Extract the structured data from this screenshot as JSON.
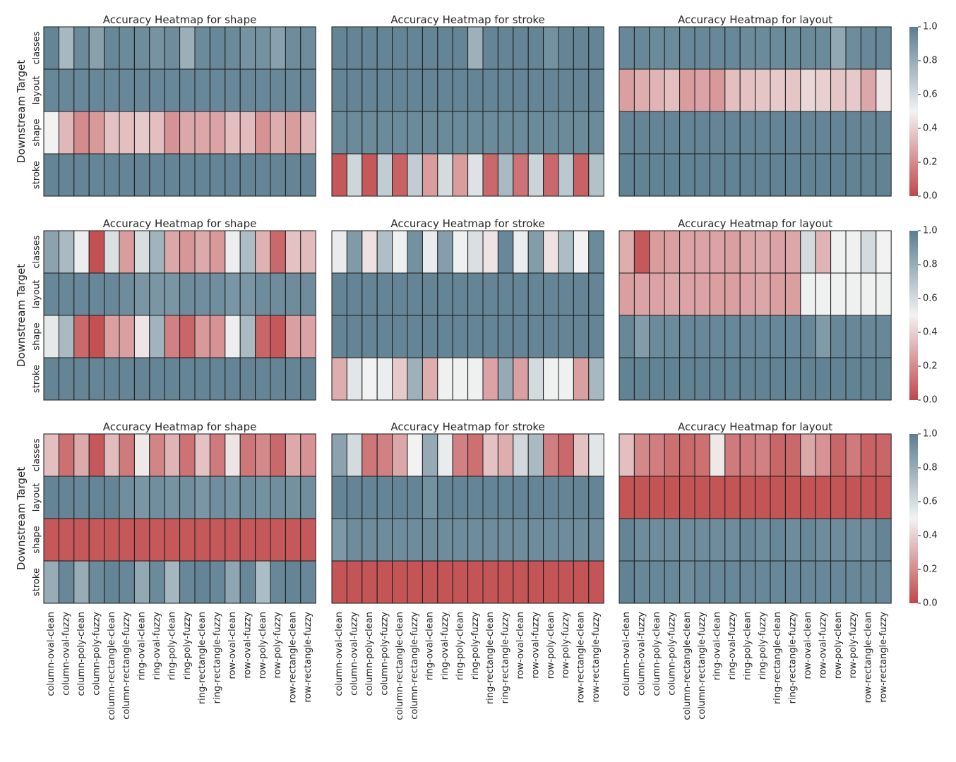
{
  "chart_data": {
    "type": "heatmap",
    "ylabel": "Downstream Target",
    "rows": [
      "classes",
      "layout",
      "shape",
      "stroke"
    ],
    "columns": [
      "column-oval-clean",
      "column-oval-fuzzy",
      "column-poly-clean",
      "column-poly-fuzzy",
      "column-rectangle-clean",
      "column-rectangle-fuzzy",
      "ring-oval-clean",
      "ring-oval-fuzzy",
      "ring-poly-clean",
      "ring-poly-fuzzy",
      "ring-rectangle-clean",
      "ring-rectangle-fuzzy",
      "row-oval-clean",
      "row-oval-fuzzy",
      "row-poly-clean",
      "row-poly-fuzzy",
      "row-rectangle-clean",
      "row-rectangle-fuzzy"
    ],
    "colorbar": {
      "range": [
        0.0,
        1.0
      ],
      "ticks": [
        "0.0",
        "0.2",
        "0.4",
        "0.6",
        "0.8",
        "1.0"
      ],
      "low_color": "#c0474a",
      "mid_color": "#f2f2f2",
      "high_color": "#5c7e90"
    },
    "grid": [
      [
        {
          "title": "Accuracy Heatmap for shape",
          "values": [
            [
              0.97,
              0.75,
              0.95,
              0.85,
              0.96,
              0.95,
              0.94,
              0.91,
              0.94,
              0.79,
              0.95,
              0.96,
              0.95,
              0.91,
              0.92,
              0.85,
              0.94,
              0.94
            ],
            [
              0.96,
              0.96,
              0.96,
              0.96,
              0.96,
              0.96,
              0.96,
              0.96,
              0.96,
              0.96,
              0.96,
              0.96,
              0.96,
              0.96,
              0.96,
              0.96,
              0.96,
              0.96
            ],
            [
              0.5,
              0.33,
              0.2,
              0.24,
              0.36,
              0.35,
              0.38,
              0.35,
              0.22,
              0.28,
              0.28,
              0.27,
              0.35,
              0.34,
              0.22,
              0.3,
              0.25,
              0.33
            ],
            [
              0.97,
              0.97,
              0.97,
              0.97,
              0.97,
              0.97,
              0.97,
              0.97,
              0.97,
              0.97,
              0.97,
              0.97,
              0.97,
              0.97,
              0.97,
              0.97,
              0.97,
              0.97
            ]
          ]
        },
        {
          "title": "Accuracy Heatmap for stroke",
          "values": [
            [
              0.97,
              0.97,
              0.97,
              0.97,
              0.97,
              0.97,
              0.97,
              0.97,
              0.97,
              0.78,
              0.97,
              0.97,
              0.97,
              0.97,
              0.92,
              0.97,
              0.97,
              0.97
            ],
            [
              0.97,
              0.97,
              0.97,
              0.97,
              0.97,
              0.97,
              0.97,
              0.97,
              0.97,
              0.97,
              0.97,
              0.97,
              0.97,
              0.97,
              0.97,
              0.97,
              0.97,
              0.97
            ],
            [
              0.95,
              0.95,
              0.95,
              0.95,
              0.95,
              0.95,
              0.95,
              0.95,
              0.95,
              0.95,
              0.95,
              0.95,
              0.95,
              0.95,
              0.95,
              0.95,
              0.95,
              0.95
            ],
            [
              0.05,
              0.62,
              0.05,
              0.66,
              0.08,
              0.66,
              0.25,
              0.6,
              0.25,
              0.57,
              0.1,
              0.74,
              0.13,
              0.63,
              0.1,
              0.68,
              0.08,
              0.71
            ]
          ]
        },
        {
          "title": "Accuracy Heatmap for layout",
          "values": [
            [
              0.96,
              0.96,
              0.95,
              0.95,
              0.96,
              0.96,
              0.96,
              0.96,
              0.95,
              0.95,
              0.95,
              0.95,
              0.95,
              0.95,
              0.82,
              0.94,
              0.96,
              0.96
            ],
            [
              0.26,
              0.3,
              0.32,
              0.35,
              0.25,
              0.27,
              0.24,
              0.35,
              0.36,
              0.37,
              0.38,
              0.37,
              0.42,
              0.4,
              0.37,
              0.38,
              0.28,
              0.46
            ],
            [
              0.97,
              0.97,
              0.97,
              0.97,
              0.97,
              0.97,
              0.97,
              0.97,
              0.97,
              0.97,
              0.97,
              0.97,
              0.97,
              0.97,
              0.97,
              0.97,
              0.97,
              0.97
            ],
            [
              0.98,
              0.98,
              0.98,
              0.98,
              0.98,
              0.98,
              0.98,
              0.98,
              0.98,
              0.98,
              0.98,
              0.98,
              0.98,
              0.98,
              0.98,
              0.98,
              0.98,
              0.98
            ]
          ]
        }
      ],
      [
        {
          "title": "Accuracy Heatmap for shape",
          "values": [
            [
              0.84,
              0.74,
              0.52,
              0.03,
              0.58,
              0.25,
              0.59,
              0.77,
              0.28,
              0.23,
              0.29,
              0.24,
              0.52,
              0.73,
              0.31,
              0.1,
              0.36,
              0.34
            ],
            [
              0.96,
              0.96,
              0.96,
              0.96,
              0.96,
              0.94,
              0.9,
              0.9,
              0.9,
              0.94,
              0.93,
              0.93,
              0.9,
              0.9,
              0.94,
              0.94,
              0.94,
              0.94
            ],
            [
              0.54,
              0.74,
              0.1,
              0.03,
              0.26,
              0.26,
              0.46,
              0.77,
              0.17,
              0.09,
              0.24,
              0.22,
              0.52,
              0.74,
              0.09,
              0.05,
              0.26,
              0.27
            ],
            [
              0.97,
              0.97,
              0.97,
              0.97,
              0.97,
              0.97,
              0.97,
              0.97,
              0.97,
              0.97,
              0.97,
              0.97,
              0.97,
              0.97,
              0.97,
              0.97,
              0.97,
              0.97
            ]
          ]
        },
        {
          "title": "Accuracy Heatmap for stroke",
          "values": [
            [
              0.53,
              0.88,
              0.45,
              0.72,
              0.51,
              0.92,
              0.53,
              0.86,
              0.51,
              0.58,
              0.46,
              0.96,
              0.52,
              0.87,
              0.45,
              0.73,
              0.5,
              0.95
            ],
            [
              0.97,
              0.97,
              0.97,
              0.97,
              0.97,
              0.97,
              0.97,
              0.97,
              0.97,
              0.97,
              0.97,
              0.97,
              0.97,
              0.97,
              0.97,
              0.97,
              0.97,
              0.97
            ],
            [
              0.97,
              0.97,
              0.97,
              0.97,
              0.97,
              0.97,
              0.97,
              0.97,
              0.97,
              0.97,
              0.97,
              0.97,
              0.97,
              0.97,
              0.97,
              0.97,
              0.97,
              0.97
            ],
            [
              0.3,
              0.55,
              0.5,
              0.52,
              0.38,
              0.78,
              0.3,
              0.51,
              0.51,
              0.51,
              0.27,
              0.81,
              0.26,
              0.6,
              0.51,
              0.51,
              0.26,
              0.75
            ]
          ]
        },
        {
          "title": "Accuracy Heatmap for layout",
          "values": [
            [
              0.3,
              0.05,
              0.25,
              0.26,
              0.27,
              0.27,
              0.27,
              0.26,
              0.28,
              0.29,
              0.27,
              0.28,
              0.6,
              0.32,
              0.51,
              0.51,
              0.6,
              0.5
            ],
            [
              0.26,
              0.27,
              0.27,
              0.28,
              0.27,
              0.27,
              0.26,
              0.26,
              0.27,
              0.28,
              0.26,
              0.26,
              0.51,
              0.51,
              0.51,
              0.51,
              0.51,
              0.51
            ],
            [
              0.96,
              0.87,
              0.95,
              0.95,
              0.96,
              0.96,
              0.96,
              0.96,
              0.96,
              0.96,
              0.96,
              0.96,
              0.96,
              0.88,
              0.96,
              0.96,
              0.96,
              0.96
            ],
            [
              0.98,
              0.98,
              0.98,
              0.98,
              0.98,
              0.98,
              0.98,
              0.98,
              0.98,
              0.98,
              0.98,
              0.98,
              0.98,
              0.98,
              0.98,
              0.98,
              0.98,
              0.98
            ]
          ]
        }
      ],
      [
        {
          "title": "Accuracy Heatmap for shape",
          "values": [
            [
              0.35,
              0.12,
              0.29,
              0.05,
              0.34,
              0.15,
              0.47,
              0.18,
              0.32,
              0.13,
              0.36,
              0.15,
              0.46,
              0.14,
              0.19,
              0.1,
              0.29,
              0.22
            ],
            [
              0.97,
              0.97,
              0.96,
              0.97,
              0.97,
              0.93,
              0.9,
              0.93,
              0.91,
              0.93,
              0.9,
              0.93,
              0.91,
              0.93,
              0.92,
              0.93,
              0.92,
              0.93
            ],
            [
              0.05,
              0.05,
              0.05,
              0.05,
              0.05,
              0.05,
              0.05,
              0.05,
              0.05,
              0.05,
              0.05,
              0.05,
              0.05,
              0.05,
              0.05,
              0.05,
              0.05,
              0.05
            ],
            [
              0.8,
              0.96,
              0.8,
              0.95,
              0.97,
              0.96,
              0.82,
              0.95,
              0.76,
              0.96,
              0.97,
              0.96,
              0.83,
              0.96,
              0.73,
              0.96,
              0.97,
              0.96
            ]
          ]
        },
        {
          "title": "Accuracy Heatmap for stroke",
          "values": [
            [
              0.84,
              0.6,
              0.14,
              0.17,
              0.28,
              0.5,
              0.81,
              0.53,
              0.17,
              0.12,
              0.36,
              0.3,
              0.61,
              0.74,
              0.16,
              0.1,
              0.36,
              0.55
            ],
            [
              0.97,
              0.97,
              0.97,
              0.97,
              0.97,
              0.97,
              0.92,
              0.97,
              0.97,
              0.97,
              0.97,
              0.97,
              0.97,
              0.97,
              0.97,
              0.97,
              0.97,
              0.97
            ],
            [
              0.89,
              0.94,
              0.94,
              0.94,
              0.94,
              0.94,
              0.94,
              0.94,
              0.94,
              0.94,
              0.94,
              0.94,
              0.94,
              0.94,
              0.94,
              0.94,
              0.94,
              0.94
            ],
            [
              0.04,
              0.04,
              0.04,
              0.04,
              0.04,
              0.04,
              0.04,
              0.04,
              0.04,
              0.04,
              0.04,
              0.04,
              0.04,
              0.04,
              0.04,
              0.04,
              0.04,
              0.04
            ]
          ]
        },
        {
          "title": "Accuracy Heatmap for layout",
          "values": [
            [
              0.35,
              0.19,
              0.16,
              0.12,
              0.1,
              0.12,
              0.47,
              0.15,
              0.15,
              0.17,
              0.09,
              0.1,
              0.28,
              0.22,
              0.09,
              0.15,
              0.08,
              0.09
            ],
            [
              0.04,
              0.04,
              0.04,
              0.04,
              0.04,
              0.04,
              0.04,
              0.04,
              0.04,
              0.04,
              0.04,
              0.04,
              0.04,
              0.04,
              0.04,
              0.04,
              0.04,
              0.04
            ],
            [
              0.97,
              0.94,
              0.94,
              0.94,
              0.94,
              0.94,
              0.94,
              0.94,
              0.96,
              0.94,
              0.96,
              0.94,
              0.96,
              0.94,
              0.94,
              0.94,
              0.94,
              0.97
            ],
            [
              0.98,
              0.96,
              0.96,
              0.96,
              0.94,
              0.96,
              0.96,
              0.96,
              0.96,
              0.96,
              0.96,
              0.96,
              0.96,
              0.96,
              0.96,
              0.96,
              0.96,
              0.96
            ]
          ]
        }
      ]
    ]
  }
}
